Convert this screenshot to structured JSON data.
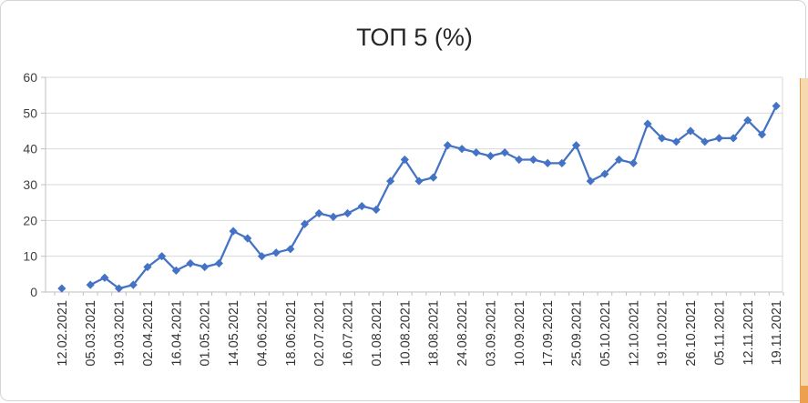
{
  "window": {
    "background": "#ffffff",
    "frame_border_color": "#d4d4d4",
    "edge_strip_color": "#f6d9ae",
    "edge_accent_color": "#e49b43"
  },
  "chart_data": {
    "type": "line",
    "title": "ТОП 5 (%)",
    "legend": "none",
    "grid": "horizontal",
    "gridline_color": "#d9d9d9",
    "axis_color": "#bfbfbf",
    "text_color": "#404040",
    "title_color": "#262626",
    "ylim": [
      0,
      60
    ],
    "y_ticks": [
      0,
      10,
      20,
      30,
      40,
      50,
      60
    ],
    "x_tick_labels": [
      "12.02.2021",
      "05.03.2021",
      "19.03.2021",
      "02.04.2021",
      "16.04.2021",
      "01.05.2021",
      "14.05.2021",
      "04.06.2021",
      "18.06.2021",
      "02.07.2021",
      "16.07.2021",
      "01.08.2021",
      "10.08.2021",
      "18.08.2021",
      "24.08.2021",
      "03.09.2021",
      "10.09.2021",
      "17.09.2021",
      "25.09.2021",
      "05.10.2021",
      "12.10.2021",
      "19.10.2021",
      "26.10.2021",
      "05.11.2021",
      "12.11.2021",
      "19.11.2021"
    ],
    "label_every": 2,
    "series": [
      {
        "name": "ТОП 5 (%)",
        "color": "#4472C4",
        "marker": "diamond",
        "values": [
          1,
          null,
          2,
          4,
          1,
          2,
          7,
          10,
          6,
          8,
          7,
          8,
          17,
          15,
          10,
          11,
          12,
          19,
          22,
          21,
          22,
          24,
          23,
          31,
          37,
          31,
          32,
          41,
          40,
          39,
          38,
          39,
          37,
          37,
          36,
          36,
          41,
          31,
          33,
          37,
          36,
          47,
          43,
          42,
          45,
          42,
          43,
          43,
          48,
          44,
          52
        ]
      }
    ]
  }
}
